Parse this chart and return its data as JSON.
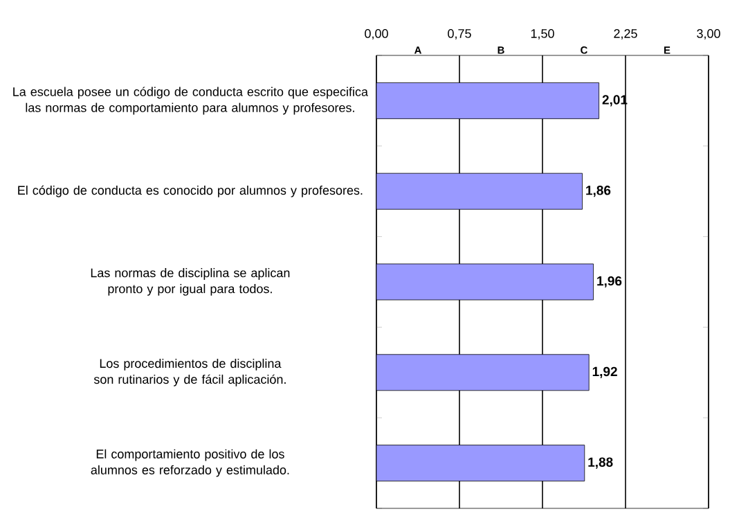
{
  "chart_data": {
    "type": "bar",
    "orientation": "horizontal",
    "categories": [
      "La escuela posee un código de conducta escrito que especifica las normas de comportamiento para alumnos y profesores.",
      "El código de conducta es conocido por alumnos y profesores.",
      "Las normas de disciplina se aplican pronto y por igual para todos.",
      "Los procedimientos de disciplina son rutinarios y de fácil aplicación.",
      "El comportamiento positivo de los alumnos es reforzado y estimulado."
    ],
    "values": [
      2.01,
      1.86,
      1.96,
      1.92,
      1.88
    ],
    "value_labels": [
      "2,01",
      "1,86",
      "1,96",
      "1,92",
      "1,88"
    ],
    "color": "#9999ff",
    "xlim": [
      0,
      3
    ],
    "xticks": [
      {
        "value": 0,
        "label": "0,00"
      },
      {
        "value": 0.75,
        "label": "0,75"
      },
      {
        "value": 1.5,
        "label": "1,50"
      },
      {
        "value": 2.25,
        "label": "2,25"
      },
      {
        "value": 3,
        "label": "3,00"
      }
    ],
    "grid": "x",
    "annotations": [
      "A",
      "B",
      "C",
      "E"
    ]
  }
}
